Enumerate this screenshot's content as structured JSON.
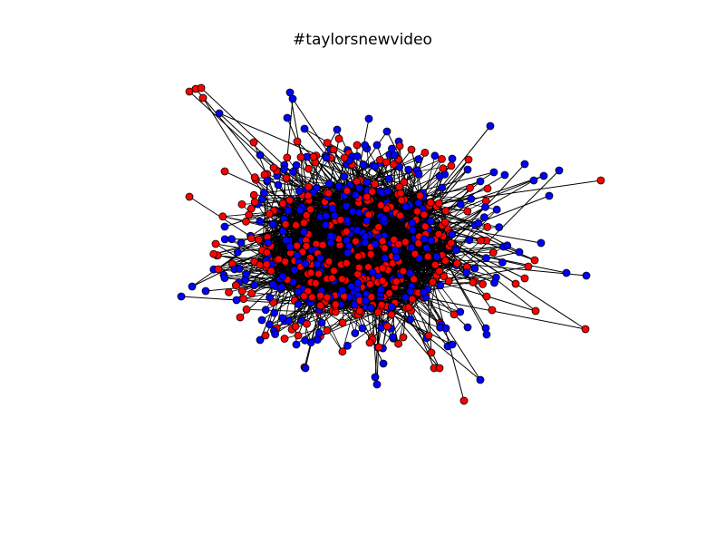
{
  "title": "#taylorsnewvideo",
  "graph": {
    "node_color_a": "#ff0000",
    "node_color_b": "#0000ff",
    "edge_color": "#000000",
    "node_stroke": "#000000"
  }
}
